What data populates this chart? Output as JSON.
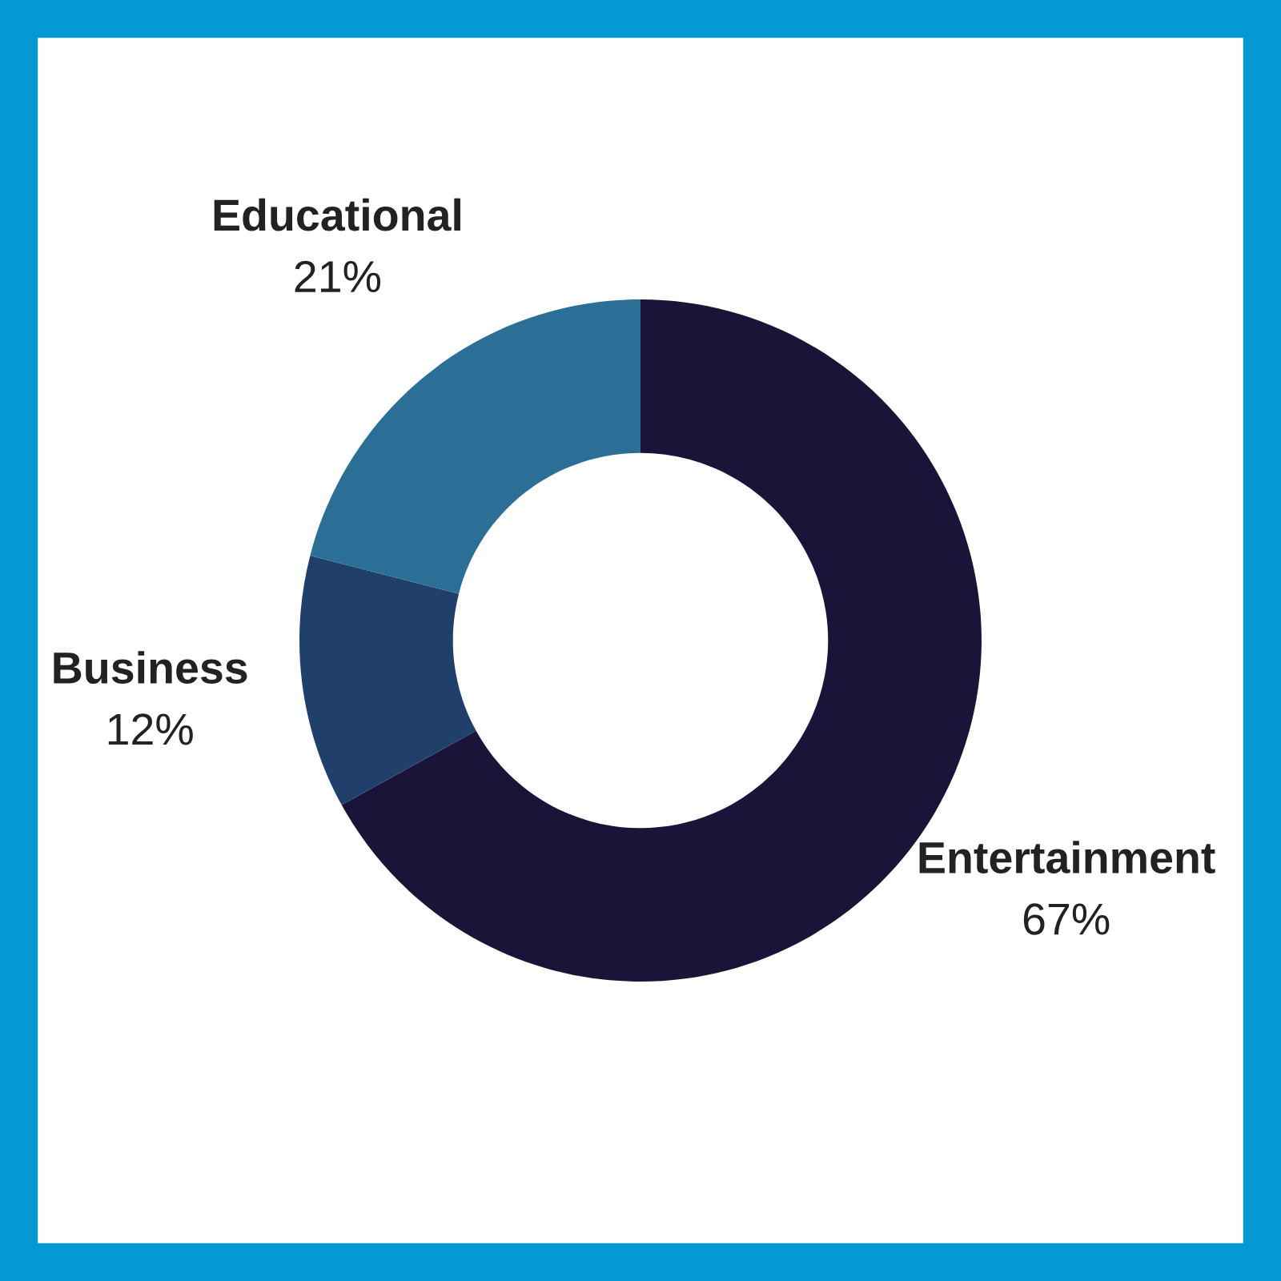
{
  "chart_data": {
    "type": "donut",
    "categories": [
      "Entertainment",
      "Business",
      "Educational"
    ],
    "values": [
      67,
      12,
      21
    ],
    "colors": [
      "#1a1438",
      "#213f6b",
      "#2b6e96"
    ],
    "value_labels": [
      "67%",
      "12%",
      "21%"
    ],
    "legend": false
  }
}
